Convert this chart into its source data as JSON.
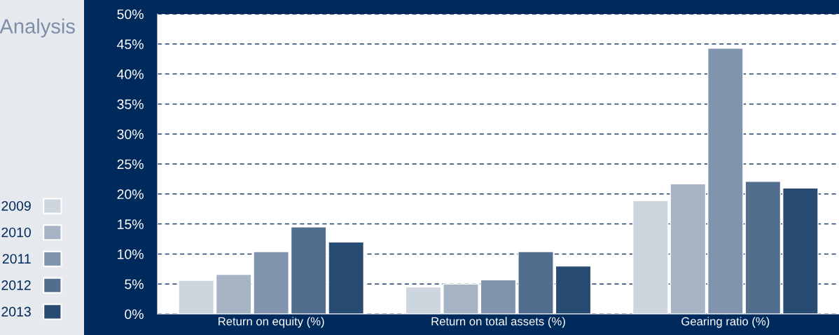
{
  "chart_data": {
    "type": "bar",
    "title": "Analysis",
    "categories": [
      "Return on equity (%)",
      "Return on total assets (%)",
      "Gearing ratio (%)"
    ],
    "series": [
      {
        "name": "2009",
        "color": "#cdd5df",
        "values": [
          5.6,
          4.5,
          18.9
        ]
      },
      {
        "name": "2010",
        "color": "#a6b4c5",
        "values": [
          6.6,
          5.0,
          21.7
        ]
      },
      {
        "name": "2011",
        "color": "#8194ad",
        "values": [
          10.4,
          5.7,
          44.3
        ]
      },
      {
        "name": "2012",
        "color": "#526e8e",
        "values": [
          14.5,
          10.4,
          22.1
        ]
      },
      {
        "name": "2013",
        "color": "#284b73",
        "values": [
          12.0,
          8.0,
          21.0
        ]
      }
    ],
    "ylim": [
      0,
      50
    ],
    "yticks": [
      {
        "value": 0,
        "label": "0%"
      },
      {
        "value": 5,
        "label": "5%"
      },
      {
        "value": 10,
        "label": "10%"
      },
      {
        "value": 15,
        "label": "15%"
      },
      {
        "value": 20,
        "label": "20%"
      },
      {
        "value": 25,
        "label": "25%"
      },
      {
        "value": 30,
        "label": "30%"
      },
      {
        "value": 35,
        "label": "35%"
      },
      {
        "value": 40,
        "label": "40%"
      },
      {
        "value": 45,
        "label": "45%"
      },
      {
        "value": 50,
        "label": "50%"
      }
    ],
    "grid": "y",
    "legend": "left"
  }
}
